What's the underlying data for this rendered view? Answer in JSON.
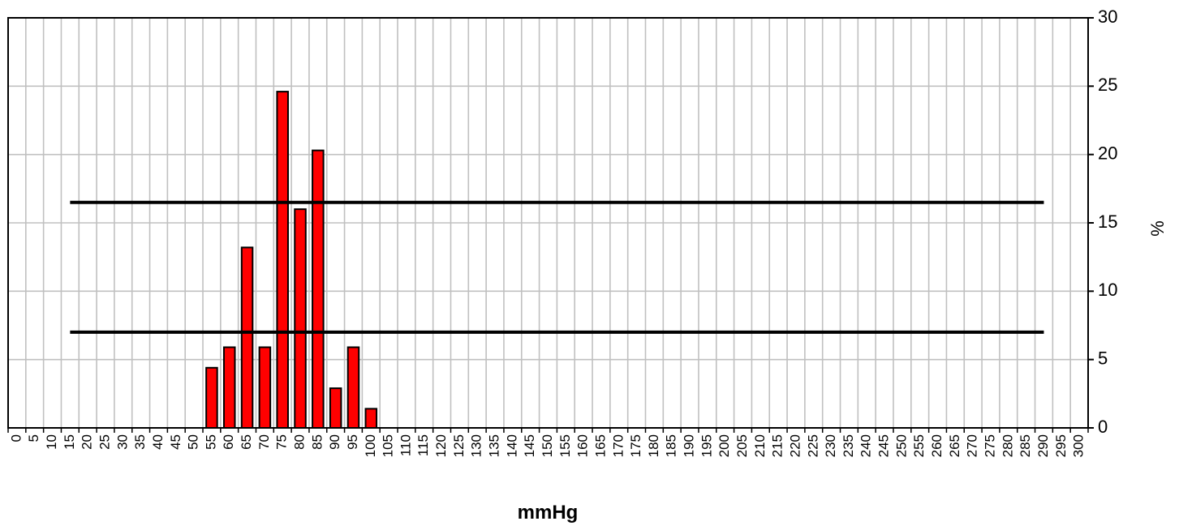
{
  "chart_data": {
    "type": "bar",
    "title": "",
    "xlabel": "mmHg",
    "ylabel": "%",
    "ylim": [
      0,
      30
    ],
    "yticks": [
      "0",
      "5",
      "10",
      "15",
      "20",
      "25",
      "30"
    ],
    "y_axis_position": "right",
    "grid": true,
    "bar_color": "#ff0000",
    "categories": [
      "0",
      "5",
      "10",
      "15",
      "20",
      "25",
      "30",
      "35",
      "40",
      "45",
      "50",
      "55",
      "60",
      "65",
      "70",
      "75",
      "80",
      "85",
      "90",
      "95",
      "100",
      "105",
      "110",
      "115",
      "120",
      "125",
      "130",
      "135",
      "140",
      "145",
      "150",
      "155",
      "160",
      "165",
      "170",
      "175",
      "180",
      "185",
      "190",
      "195",
      "200",
      "205",
      "210",
      "215",
      "220",
      "225",
      "230",
      "235",
      "240",
      "245",
      "250",
      "255",
      "260",
      "265",
      "270",
      "275",
      "280",
      "285",
      "290",
      "295",
      "300"
    ],
    "values": [
      0,
      0,
      0,
      0,
      0,
      0,
      0,
      0,
      0,
      0,
      0,
      4.4,
      5.9,
      13.2,
      5.9,
      24.6,
      16.0,
      20.3,
      2.9,
      5.9,
      1.4,
      0,
      0,
      0,
      0,
      0,
      0,
      0,
      0,
      0,
      0,
      0,
      0,
      0,
      0,
      0,
      0,
      0,
      0,
      0,
      0,
      0,
      0,
      0,
      0,
      0,
      0,
      0,
      0,
      0,
      0,
      0,
      0,
      0,
      0,
      0,
      0,
      0,
      0,
      0,
      0
    ],
    "reference_lines": [
      {
        "y": 16.5,
        "x_from": "15",
        "x_to": "290"
      },
      {
        "y": 7.0,
        "x_from": "15",
        "x_to": "290"
      }
    ]
  }
}
